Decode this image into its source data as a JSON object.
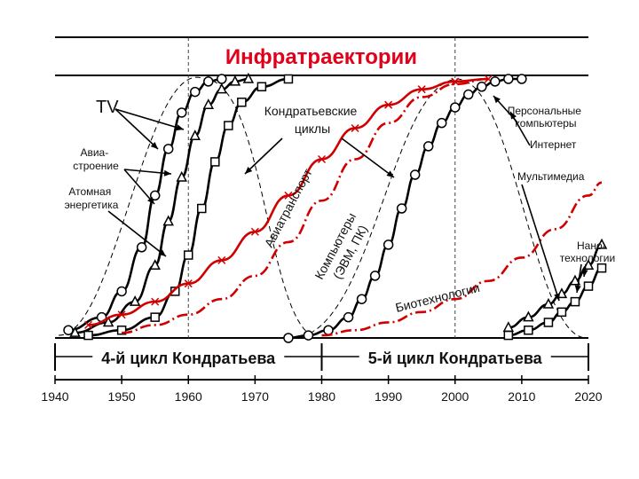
{
  "chart_data": {
    "type": "line",
    "title": "Инфратраектории",
    "xlabel": "",
    "ylabel": "",
    "xlim": [
      1940,
      2020
    ],
    "grid": false,
    "x_ticks": [
      "1940",
      "1950",
      "1960",
      "1970",
      "1980",
      "1990",
      "2000",
      "2010",
      "2020"
    ],
    "cycles": [
      {
        "label": "4-й цикл Кондратьева",
        "start": 1940,
        "end": 1980
      },
      {
        "label": "5-й цикл Кондратьева",
        "start": 1980,
        "end": 2020
      }
    ],
    "reference_lines": [
      1960,
      2000
    ],
    "series": [
      {
        "name": "TV",
        "color": "#000000",
        "marker": "circle",
        "style": "solid",
        "x": [
          1942,
          1947,
          1950,
          1953,
          1955,
          1957,
          1959,
          1961,
          1963,
          1965
        ],
        "y": [
          3,
          8,
          18,
          35,
          55,
          73,
          87,
          95,
          99,
          100
        ]
      },
      {
        "name": "Авиа-строение",
        "color": "#000000",
        "marker": "triangle",
        "style": "solid",
        "x": [
          1943,
          1948,
          1952,
          1955,
          1957,
          1959,
          1961,
          1963,
          1965,
          1967,
          1969
        ],
        "y": [
          2,
          6,
          14,
          28,
          45,
          62,
          78,
          90,
          96,
          99,
          100
        ]
      },
      {
        "name": "Атомная энергетика",
        "color": "#000000",
        "marker": "square",
        "style": "solid",
        "x": [
          1945,
          1950,
          1955,
          1958,
          1960,
          1962,
          1964,
          1966,
          1968,
          1971,
          1975
        ],
        "y": [
          1,
          3,
          8,
          18,
          32,
          50,
          68,
          82,
          91,
          97,
          100
        ]
      },
      {
        "name": "Авиатранспорт",
        "color": "#d00000",
        "marker": "x",
        "style": "solid",
        "x": [
          1945,
          1950,
          1955,
          1960,
          1965,
          1970,
          1975,
          1980,
          1985,
          1990,
          1995,
          2000,
          2005
        ],
        "y": [
          5,
          9,
          14,
          21,
          30,
          41,
          55,
          69,
          81,
          90,
          96,
          99,
          100
        ]
      },
      {
        "name": "Компьютеры (ЭВМ, ПК)",
        "color": "#d00000",
        "marker": "none",
        "style": "dashdot",
        "x": [
          1950,
          1955,
          1960,
          1965,
          1970,
          1975,
          1980,
          1985,
          1990,
          1995,
          2000,
          2005
        ],
        "y": [
          2,
          5,
          9,
          15,
          24,
          37,
          53,
          69,
          83,
          93,
          98,
          100
        ]
      },
      {
        "name": "Персональные компьютеры",
        "color": "#000000",
        "marker": "circle",
        "style": "solid",
        "x": [
          1975,
          1978,
          1981,
          1984,
          1986,
          1988,
          1990,
          1992,
          1994,
          1996,
          1998,
          2000,
          2002,
          2004,
          2006,
          2008,
          2010
        ],
        "y": [
          0,
          1,
          3,
          8,
          15,
          24,
          36,
          50,
          63,
          74,
          83,
          89,
          94,
          97,
          99,
          100,
          100
        ]
      },
      {
        "name": "Биотехнологии",
        "color": "#d00000",
        "marker": "none",
        "style": "dashdot",
        "x": [
          1980,
          1985,
          1990,
          1995,
          2000,
          2005,
          2010,
          2015,
          2020,
          2022
        ],
        "y": [
          1,
          3,
          6,
          10,
          15,
          22,
          31,
          42,
          55,
          60
        ]
      },
      {
        "name": "Нано-технологии",
        "color": "#000000",
        "marker": "triangle",
        "style": "solid",
        "x": [
          2008,
          2011,
          2014,
          2016,
          2018,
          2020,
          2022
        ],
        "y": [
          4,
          8,
          13,
          17,
          22,
          28,
          36
        ]
      },
      {
        "name": "Нано-технологии",
        "color": "#000000",
        "marker": "square",
        "style": "solid",
        "x": [
          2008,
          2011,
          2014,
          2016,
          2018,
          2020,
          2022
        ],
        "y": [
          1,
          3,
          6,
          10,
          14,
          20,
          27
        ]
      }
    ],
    "annotations": [
      "TV",
      "Авиа-\nстроение",
      "Атомная\nэнергетика",
      "Кондратьевские\nциклы",
      "Авиатранспорт",
      "Компьютеры\n(ЭВМ, ПК)",
      "Персональные\nкомпьютеры",
      "Интернет",
      "Мультимедиа",
      "Нано-\nтехнологии",
      "Биотехнологии"
    ]
  }
}
